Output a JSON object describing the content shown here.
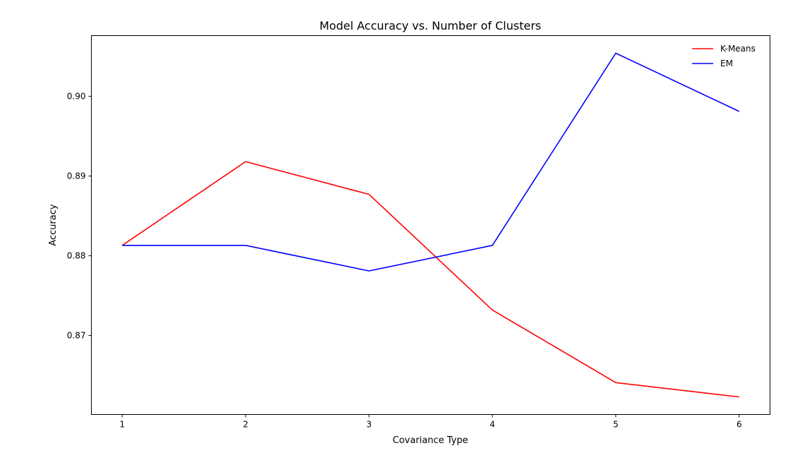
{
  "chart_data": {
    "type": "line",
    "title": "Model Accuracy vs. Number of Clusters",
    "xlabel": "Covariance Type",
    "ylabel": "Accuracy",
    "x": [
      1,
      2,
      3,
      4,
      5,
      6
    ],
    "xticks": [
      "1",
      "2",
      "3",
      "4",
      "5",
      "6"
    ],
    "yticks": [
      "0.87",
      "0.88",
      "0.89",
      "0.90"
    ],
    "xlim": [
      0.75,
      6.25
    ],
    "ylim": [
      0.8601,
      0.9076
    ],
    "grid": false,
    "legend_position": "top-right",
    "series": [
      {
        "name": "K-Means",
        "color": "#ff0000",
        "values": [
          0.8813,
          0.8918,
          0.8877,
          0.8732,
          0.8641,
          0.8623
        ]
      },
      {
        "name": "EM",
        "color": "#0000ff",
        "values": [
          0.8813,
          0.8813,
          0.8781,
          0.8813,
          0.9054,
          0.8981
        ]
      }
    ]
  }
}
